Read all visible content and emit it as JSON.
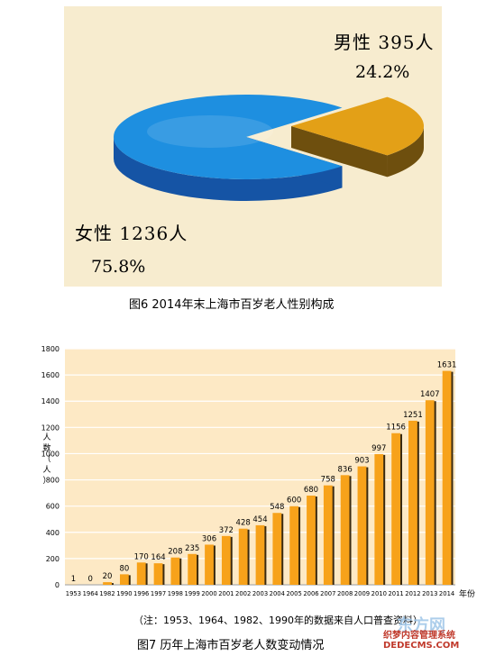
{
  "chart_data": [
    {
      "type": "pie",
      "style": "3d-exploded",
      "slices": [
        {
          "label": "男性 395人",
          "value": 395,
          "percent_label": "24.2%",
          "color": "#e3a017",
          "side_color": "#6e4f0e"
        },
        {
          "label": "女性 1236人",
          "value": 1236,
          "percent_label": "75.8%",
          "color": "#1e8fe0",
          "side_color": "#1554a5"
        }
      ],
      "background": "#f7eccf",
      "title": "图6   2014年末上海市百岁老人性别构成"
    },
    {
      "type": "bar",
      "categories": [
        "1953",
        "1964",
        "1982",
        "1990",
        "1996",
        "1997",
        "1998",
        "1999",
        "2000",
        "2001",
        "2002",
        "2003",
        "2004",
        "2005",
        "2006",
        "2007",
        "2008",
        "2009",
        "2010",
        "2011",
        "2012",
        "2013",
        "2014"
      ],
      "values": [
        1,
        0,
        20,
        80,
        170,
        164,
        208,
        235,
        306,
        372,
        428,
        454,
        548,
        600,
        680,
        758,
        836,
        903,
        997,
        1156,
        1251,
        1407,
        1631
      ],
      "data_labels": [
        "1",
        "0",
        "20",
        "80",
        "170",
        "164",
        "208",
        "235",
        "306",
        "372",
        "428",
        "454",
        "548",
        "600",
        "680",
        "758",
        "836",
        "903",
        "997",
        "1156",
        "1251",
        "1407",
        "1631"
      ],
      "ylim": [
        0,
        1800
      ],
      "yticks": [
        0,
        200,
        400,
        600,
        800,
        1000,
        1200,
        1400,
        1600,
        1800
      ],
      "ylabel": "人数（人）",
      "xlabel": "年份",
      "bar_color": "#f7a21a",
      "plot_background": "#fde9c5",
      "grid": true,
      "note": "（注：1953、1964、1982、1990年的数据来自人口普查资料）",
      "title": "图7    历年上海市百岁老人数变动情况"
    }
  ],
  "watermark": {
    "logo_text": "东方网",
    "line1": "织梦内容管理系统",
    "line2": "DEDECMS.COM"
  }
}
